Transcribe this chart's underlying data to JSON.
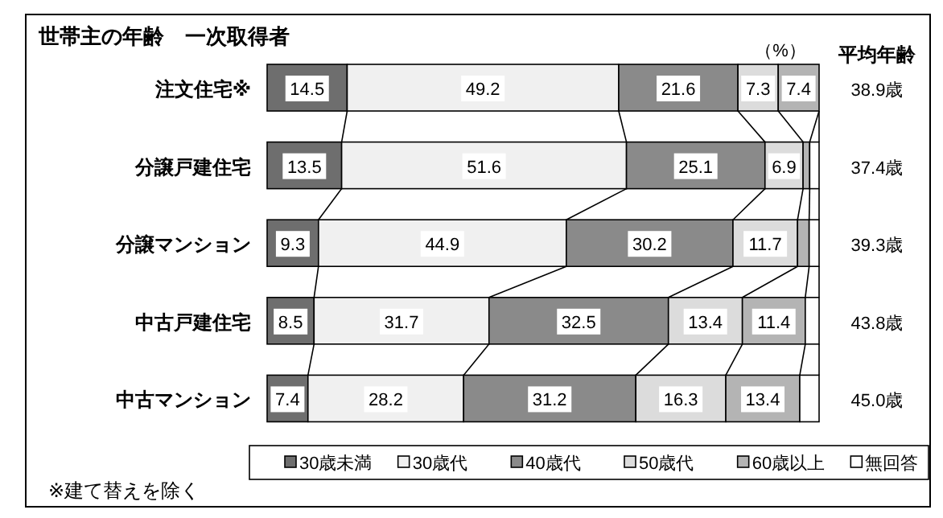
{
  "chart_data": {
    "type": "bar",
    "orientation": "horizontal",
    "stacked": true,
    "title": "世帯主の年齢　一次取得者",
    "xlabel": "（%）",
    "y2label": "平均年齢",
    "xlim": [
      0,
      100
    ],
    "legend": "bottom",
    "categories": [
      "注文住宅※",
      "分譲戸建住宅",
      "分譲マンション",
      "中古戸建住宅",
      "中古マンション"
    ],
    "series": [
      {
        "name": "30歳未満",
        "color": "#6e6e6e",
        "values": [
          14.5,
          13.5,
          9.3,
          8.5,
          7.4
        ],
        "value_labels": [
          "14.5",
          "13.5",
          "9.3",
          "8.5",
          "7.4"
        ]
      },
      {
        "name": "30歳代",
        "color": "#f0f0f0",
        "values": [
          49.2,
          51.6,
          44.9,
          31.7,
          28.2
        ],
        "value_labels": [
          "49.2",
          "51.6",
          "44.9",
          "31.7",
          "28.2"
        ]
      },
      {
        "name": "40歳代",
        "color": "#8a8a8a",
        "values": [
          21.6,
          25.1,
          30.2,
          32.5,
          31.2
        ],
        "value_labels": [
          "21.6",
          "25.1",
          "30.2",
          "32.5",
          "31.2"
        ]
      },
      {
        "name": "50歳代",
        "color": "#dcdcdc",
        "values": [
          7.3,
          6.9,
          11.7,
          13.4,
          16.3
        ],
        "value_labels": [
          "7.3",
          "6.9",
          "11.7",
          "13.4",
          "16.3"
        ]
      },
      {
        "name": "60歳以上",
        "color": "#b4b4b4",
        "values": [
          7.4,
          1.2,
          2.1,
          11.4,
          13.4
        ],
        "value_labels": [
          "7.4",
          null,
          null,
          "11.4",
          "13.4"
        ]
      },
      {
        "name": "無回答",
        "color": "#ffffff",
        "values": [
          0,
          1.7,
          1.8,
          2.5,
          3.5
        ],
        "value_labels": [
          null,
          null,
          null,
          null,
          null
        ]
      }
    ],
    "annotations": [
      "38.9歳",
      "37.4歳",
      "39.3歳",
      "43.8歳",
      "45.0歳",
      "※建て替えを除く"
    ]
  }
}
